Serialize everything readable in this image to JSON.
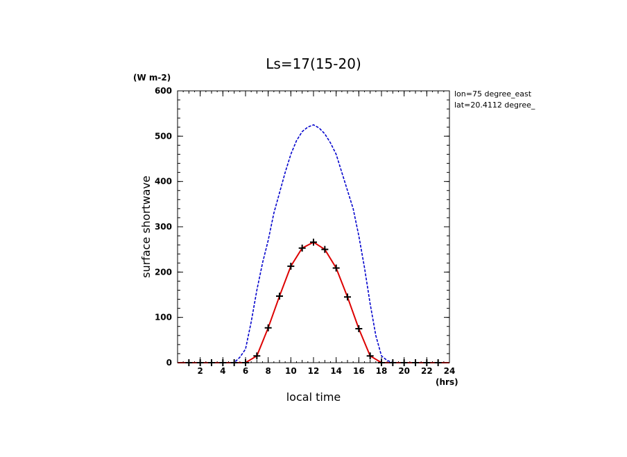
{
  "chart_data": {
    "type": "line",
    "title": "Ls=17(15-20)",
    "xlabel": "local time",
    "ylabel": "surface shortwave",
    "y_unit": "(W m-2)",
    "x_unit": "(hrs)",
    "info": [
      "lon=75 degree_east",
      "lat=20.4112 degree_"
    ],
    "xlim": [
      0,
      24
    ],
    "ylim": [
      0,
      600
    ],
    "x_ticks": [
      2,
      4,
      6,
      8,
      10,
      12,
      14,
      16,
      18,
      20,
      22,
      24
    ],
    "x_tick_labels": [
      "2",
      "4",
      "6",
      "8",
      "10",
      "12",
      "14",
      "16",
      "18",
      "20",
      "22",
      "24"
    ],
    "y_ticks": [
      0,
      100,
      200,
      300,
      400,
      500,
      600
    ],
    "y_tick_labels": [
      "0",
      "100",
      "200",
      "300",
      "400",
      "500",
      "600"
    ],
    "grid": false,
    "series": [
      {
        "color": "#0000cc",
        "style": "dashed",
        "markers": false,
        "x": [
          0,
          1,
          2,
          3,
          4,
          5,
          5.5,
          6,
          6.5,
          7,
          7.5,
          8,
          8.5,
          9,
          9.5,
          10,
          10.5,
          11,
          11.5,
          12,
          12.5,
          13,
          13.5,
          14,
          14.5,
          15,
          15.5,
          16,
          16.5,
          17,
          17.5,
          18,
          18.5,
          19,
          20,
          21,
          22,
          23,
          24
        ],
        "y": [
          0,
          0,
          0,
          0,
          0,
          0,
          12,
          30,
          90,
          160,
          220,
          270,
          330,
          375,
          420,
          460,
          490,
          510,
          520,
          525,
          518,
          505,
          485,
          460,
          420,
          380,
          340,
          280,
          210,
          130,
          60,
          15,
          5,
          0,
          0,
          0,
          0,
          0,
          0
        ]
      },
      {
        "color": "#dd0000",
        "style": "solid",
        "markers": false,
        "x": [
          0,
          1,
          2,
          3,
          4,
          5,
          6,
          7,
          8,
          9,
          10,
          11,
          12,
          13,
          14,
          15,
          16,
          17,
          18,
          19,
          20,
          21,
          22,
          23,
          24
        ],
        "y": [
          0,
          0,
          0,
          0,
          0,
          0,
          0,
          15,
          77,
          147,
          213,
          253,
          266,
          250,
          209,
          145,
          75,
          15,
          0,
          0,
          0,
          0,
          0,
          0,
          0
        ]
      },
      {
        "color": "#000000",
        "style": "markers",
        "marker": "plus",
        "x": [
          1,
          2,
          3,
          4,
          5,
          6,
          7,
          8,
          9,
          10,
          11,
          12,
          13,
          14,
          15,
          16,
          17,
          18,
          19,
          20,
          21,
          22,
          23
        ],
        "y": [
          0,
          0,
          0,
          0,
          0,
          0,
          15,
          77,
          147,
          213,
          253,
          266,
          250,
          209,
          145,
          75,
          15,
          0,
          0,
          0,
          0,
          0,
          0
        ]
      }
    ]
  }
}
